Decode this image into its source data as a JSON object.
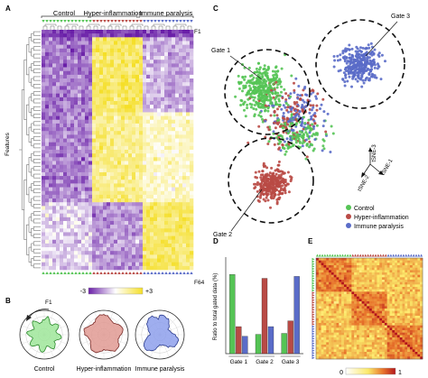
{
  "panels": {
    "a": {
      "letter": "A",
      "groups": [
        "Control",
        "Hyper-inflammation",
        "Immune paralysis"
      ],
      "y_label": "Features",
      "first_feature": "F1",
      "last_feature": "F64",
      "colorbar_min": "-3",
      "colorbar_max": "+3"
    },
    "b": {
      "letter": "B",
      "marker": "F1",
      "labels": [
        "Control",
        "Hyper-inflammation",
        "Immune paralysis"
      ]
    },
    "c": {
      "letter": "C",
      "gates": [
        "Gate 1",
        "Gate 2",
        "Gate 3"
      ],
      "axis1": "tSNE-1",
      "axis2": "tSNE-2",
      "axis3": "tSNE-3",
      "legend": [
        "Control",
        "Hyper-inflammation",
        "Immune paralysis"
      ]
    },
    "d": {
      "letter": "D",
      "y_label": "Ratio to total gated data (%)"
    },
    "e": {
      "letter": "E",
      "colorbar_min": "0",
      "colorbar_max": "1"
    }
  },
  "colors": {
    "control": "#55c455",
    "hyper": "#b94a45",
    "paralysis": "#5a6cc8",
    "purple": "#7b2fb5",
    "yellow": "#f5e12e"
  },
  "chart_data": [
    {
      "type": "bar",
      "panel": "D",
      "categories": [
        "Gate 1",
        "Gate 2",
        "Gate 3"
      ],
      "series": [
        {
          "name": "Control",
          "values": [
            82,
            20,
            21
          ]
        },
        {
          "name": "Hyper-inflammation",
          "values": [
            28,
            78,
            34
          ]
        },
        {
          "name": "Immune paralysis",
          "values": [
            18,
            28,
            80
          ]
        }
      ],
      "ylabel": "Ratio to total gated data (%)",
      "ylim": [
        0,
        100
      ]
    }
  ]
}
